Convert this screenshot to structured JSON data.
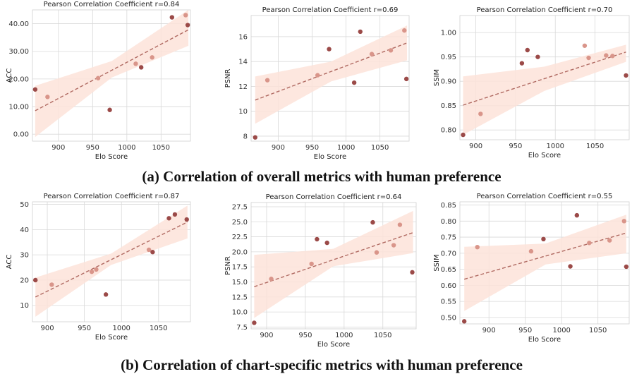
{
  "captions": [
    "(a) Correlation of overall metrics with human preference",
    "(b) Correlation of chart-specific metrics with human preference"
  ],
  "colors": {
    "band": "#fde3d9",
    "fit_line": "#b06a62",
    "point_dark": "#9b4a48",
    "point_light": "#d9958a"
  },
  "chart_data": [
    {
      "type": "scatter",
      "title": "Pearson Correlation Coefficient r=0.84",
      "xlabel": "Elo Score",
      "ylabel": "ACC",
      "xlim": [
        862,
        1093
      ],
      "ylim": [
        -2.5,
        45
      ],
      "xticks": [
        900,
        950,
        1000,
        1050
      ],
      "yticks": [
        0,
        10,
        20,
        30,
        40
      ],
      "fit": {
        "x": [
          866,
          1090
        ],
        "y": [
          8.5,
          37.8
        ]
      },
      "band": {
        "x": [
          866,
          978,
          1090
        ],
        "upper": [
          17.5,
          26.5,
          45
        ],
        "lower": [
          -1,
          20.5,
          32
        ]
      },
      "points": [
        {
          "x": 866,
          "y": 16.2,
          "shade": "dark"
        },
        {
          "x": 884,
          "y": 13.5,
          "shade": "light"
        },
        {
          "x": 958,
          "y": 20.3,
          "shade": "light"
        },
        {
          "x": 975,
          "y": 8.8,
          "shade": "dark"
        },
        {
          "x": 1013,
          "y": 25.5,
          "shade": "light"
        },
        {
          "x": 1021,
          "y": 24.2,
          "shade": "dark"
        },
        {
          "x": 1037,
          "y": 27.8,
          "shade": "light"
        },
        {
          "x": 1066,
          "y": 42.3,
          "shade": "dark"
        },
        {
          "x": 1086,
          "y": 43.1,
          "shade": "light"
        },
        {
          "x": 1089,
          "y": 39.5,
          "shade": "dark"
        }
      ]
    },
    {
      "type": "scatter",
      "title": "Pearson Correlation Coefficient r=0.69",
      "xlabel": "Elo Score",
      "ylabel": "PSNR",
      "xlim": [
        860,
        1093
      ],
      "ylim": [
        7.6,
        17.7
      ],
      "xticks": [
        900,
        950,
        1000,
        1050
      ],
      "yticks": [
        8,
        10,
        12,
        14,
        16
      ],
      "fit": {
        "x": [
          866,
          1090
        ],
        "y": [
          10.9,
          15.5
        ]
      },
      "band": {
        "x": [
          866,
          978,
          1090
        ],
        "upper": [
          12.8,
          14.0,
          16.9
        ],
        "lower": [
          9.0,
          12.4,
          14.1
        ]
      },
      "points": [
        {
          "x": 866,
          "y": 7.9,
          "shade": "dark"
        },
        {
          "x": 884,
          "y": 12.5,
          "shade": "light"
        },
        {
          "x": 958,
          "y": 12.9,
          "shade": "light"
        },
        {
          "x": 975,
          "y": 15.0,
          "shade": "dark"
        },
        {
          "x": 1012,
          "y": 12.3,
          "shade": "dark"
        },
        {
          "x": 1021,
          "y": 16.4,
          "shade": "dark"
        },
        {
          "x": 1038,
          "y": 14.6,
          "shade": "light"
        },
        {
          "x": 1066,
          "y": 14.9,
          "shade": "light"
        },
        {
          "x": 1086,
          "y": 16.5,
          "shade": "light"
        },
        {
          "x": 1089,
          "y": 12.6,
          "shade": "dark"
        }
      ]
    },
    {
      "type": "scatter",
      "title": "Pearson Correlation Coefficient r=0.70",
      "xlabel": "Elo Score",
      "ylabel": "SSIM",
      "xlim": [
        880,
        1093
      ],
      "ylim": [
        0.78,
        1.035
      ],
      "xticks": [
        900,
        950,
        1000,
        1050
      ],
      "yticks": [
        0.8,
        0.85,
        0.9,
        0.95,
        1.0
      ],
      "fit": {
        "x": [
          884,
          1089
        ],
        "y": [
          0.851,
          0.96
        ]
      },
      "band": {
        "x": [
          884,
          986,
          1089
        ],
        "upper": [
          0.91,
          0.93,
          0.975
        ],
        "lower": [
          0.79,
          0.88,
          0.94
        ]
      },
      "points": [
        {
          "x": 884,
          "y": 0.79,
          "shade": "dark"
        },
        {
          "x": 906,
          "y": 0.833,
          "shade": "light"
        },
        {
          "x": 958,
          "y": 0.937,
          "shade": "dark"
        },
        {
          "x": 965,
          "y": 0.964,
          "shade": "dark"
        },
        {
          "x": 978,
          "y": 0.95,
          "shade": "dark"
        },
        {
          "x": 1037,
          "y": 0.973,
          "shade": "light"
        },
        {
          "x": 1042,
          "y": 0.948,
          "shade": "light"
        },
        {
          "x": 1064,
          "y": 0.953,
          "shade": "light"
        },
        {
          "x": 1072,
          "y": 0.952,
          "shade": "light"
        },
        {
          "x": 1089,
          "y": 0.912,
          "shade": "dark"
        }
      ]
    },
    {
      "type": "scatter",
      "title": "Pearson Correlation Coefficient r=0.87",
      "xlabel": "Elo Score",
      "ylabel": "ACC",
      "xlim": [
        880,
        1093
      ],
      "ylim": [
        3.5,
        51
      ],
      "xticks": [
        900,
        950,
        1000,
        1050
      ],
      "yticks": [
        10,
        20,
        30,
        40,
        50
      ],
      "fit": {
        "x": [
          884,
          1089
        ],
        "y": [
          13.3,
          43.0
        ]
      },
      "band": {
        "x": [
          884,
          986,
          1089
        ],
        "upper": [
          21,
          30.5,
          49.5
        ],
        "lower": [
          5.5,
          26,
          36.5
        ]
      },
      "points": [
        {
          "x": 884,
          "y": 20.0,
          "shade": "dark"
        },
        {
          "x": 906,
          "y": 18.2,
          "shade": "light"
        },
        {
          "x": 960,
          "y": 23.3,
          "shade": "light"
        },
        {
          "x": 966,
          "y": 24.2,
          "shade": "light"
        },
        {
          "x": 979,
          "y": 14.3,
          "shade": "dark"
        },
        {
          "x": 1037,
          "y": 32.0,
          "shade": "light"
        },
        {
          "x": 1042,
          "y": 31.1,
          "shade": "dark"
        },
        {
          "x": 1064,
          "y": 44.5,
          "shade": "dark"
        },
        {
          "x": 1072,
          "y": 46.0,
          "shade": "dark"
        },
        {
          "x": 1088,
          "y": 44.0,
          "shade": "dark"
        }
      ]
    },
    {
      "type": "scatter",
      "title": "Pearson Correlation Coefficient r=0.64",
      "xlabel": "Elo Score",
      "ylabel": "PSNR",
      "xlim": [
        880,
        1093
      ],
      "ylim": [
        7.2,
        28.2
      ],
      "xticks": [
        900,
        950,
        1000,
        1050
      ],
      "yticks": [
        7.5,
        10.0,
        12.5,
        15.0,
        17.5,
        20.0,
        22.5,
        25.0,
        27.5
      ],
      "fit": {
        "x": [
          884,
          1089
        ],
        "y": [
          14.2,
          23.2
        ]
      },
      "band": {
        "x": [
          884,
          986,
          1089
        ],
        "upper": [
          19.5,
          20.5,
          26.8
        ],
        "lower": [
          9.0,
          17.6,
          19.8
        ]
      },
      "points": [
        {
          "x": 884,
          "y": 8.2,
          "shade": "dark"
        },
        {
          "x": 906,
          "y": 15.5,
          "shade": "light"
        },
        {
          "x": 958,
          "y": 18.0,
          "shade": "light"
        },
        {
          "x": 965,
          "y": 22.1,
          "shade": "dark"
        },
        {
          "x": 978,
          "y": 21.5,
          "shade": "dark"
        },
        {
          "x": 1037,
          "y": 24.9,
          "shade": "dark"
        },
        {
          "x": 1042,
          "y": 19.9,
          "shade": "light"
        },
        {
          "x": 1064,
          "y": 21.1,
          "shade": "light"
        },
        {
          "x": 1072,
          "y": 24.5,
          "shade": "light"
        },
        {
          "x": 1088,
          "y": 16.6,
          "shade": "dark"
        }
      ]
    },
    {
      "type": "scatter",
      "title": "Pearson Correlation Coefficient r=0.55",
      "xlabel": "Elo Score",
      "ylabel": "SSIM",
      "xlim": [
        860,
        1093
      ],
      "ylim": [
        0.48,
        0.86
      ],
      "xticks": [
        900,
        950,
        1000,
        1050
      ],
      "yticks": [
        0.5,
        0.55,
        0.6,
        0.65,
        0.7,
        0.75,
        0.8,
        0.85
      ],
      "fit": {
        "x": [
          866,
          1089
        ],
        "y": [
          0.619,
          0.763
        ]
      },
      "band": {
        "x": [
          866,
          978,
          1089
        ],
        "upper": [
          0.72,
          0.73,
          0.82
        ],
        "lower": [
          0.52,
          0.665,
          0.7
        ]
      },
      "points": [
        {
          "x": 866,
          "y": 0.488,
          "shade": "dark"
        },
        {
          "x": 884,
          "y": 0.719,
          "shade": "light"
        },
        {
          "x": 958,
          "y": 0.706,
          "shade": "light"
        },
        {
          "x": 975,
          "y": 0.744,
          "shade": "dark"
        },
        {
          "x": 1012,
          "y": 0.659,
          "shade": "dark"
        },
        {
          "x": 1021,
          "y": 0.818,
          "shade": "dark"
        },
        {
          "x": 1038,
          "y": 0.732,
          "shade": "light"
        },
        {
          "x": 1066,
          "y": 0.74,
          "shade": "light"
        },
        {
          "x": 1086,
          "y": 0.8,
          "shade": "light"
        },
        {
          "x": 1089,
          "y": 0.658,
          "shade": "dark"
        }
      ]
    }
  ]
}
